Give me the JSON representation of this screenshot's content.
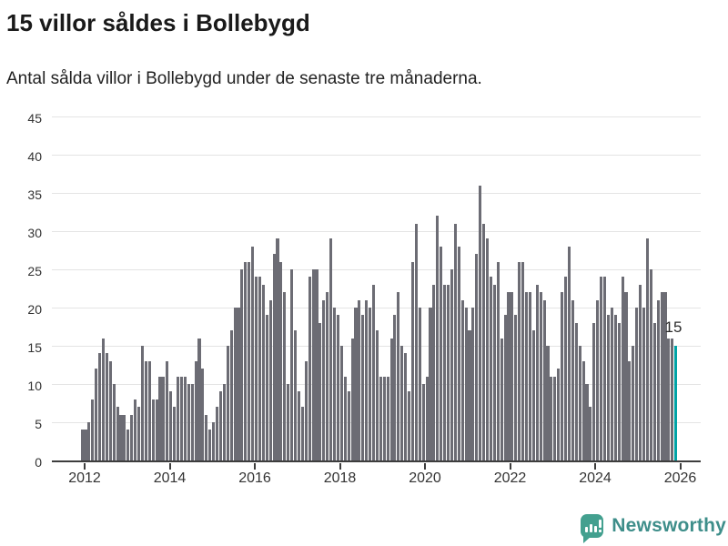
{
  "header": {
    "title": "15 villor såldes i Bollebygd",
    "subtitle": "Antal sålda villor i Bollebygd under de senaste tre månaderna."
  },
  "chart_data": {
    "type": "bar",
    "title": "15 villor såldes i Bollebygd",
    "frequency": "monthly",
    "start_month": "2011-12",
    "end_month": "2025-11",
    "ylim": [
      0,
      45
    ],
    "y_ticks": [
      0,
      5,
      10,
      15,
      20,
      25,
      30,
      35,
      40,
      45
    ],
    "x_tick_labels": [
      "2012",
      "2014",
      "2016",
      "2018",
      "2020",
      "2022",
      "2024",
      "2026"
    ],
    "grid": true,
    "legend": false,
    "bar_color": "#6c6c74",
    "values": [
      4,
      4,
      5,
      8,
      12,
      14,
      16,
      14,
      13,
      10,
      7,
      6,
      6,
      4,
      6,
      8,
      7,
      15,
      13,
      13,
      8,
      8,
      11,
      11,
      13,
      9,
      7,
      11,
      11,
      11,
      10,
      10,
      13,
      16,
      12,
      6,
      4,
      5,
      7,
      9,
      10,
      15,
      17,
      20,
      20,
      25,
      26,
      26,
      28,
      24,
      24,
      23,
      19,
      21,
      27,
      29,
      26,
      22,
      10,
      25,
      17,
      9,
      7,
      13,
      24,
      25,
      25,
      18,
      21,
      22,
      29,
      20,
      19,
      15,
      11,
      9,
      16,
      20,
      21,
      19,
      21,
      20,
      23,
      17,
      11,
      11,
      11,
      16,
      19,
      22,
      15,
      14,
      9,
      26,
      31,
      20,
      10,
      11,
      20,
      23,
      32,
      28,
      23,
      23,
      25,
      31,
      28,
      21,
      20,
      17,
      20,
      27,
      36,
      31,
      29,
      24,
      23,
      26,
      16,
      19,
      22,
      22,
      19,
      26,
      26,
      22,
      22,
      17,
      23,
      22,
      21,
      15,
      11,
      11,
      12,
      22,
      24,
      28,
      21,
      18,
      15,
      13,
      10,
      7,
      18,
      21,
      24,
      24,
      19,
      20,
      19,
      18,
      24,
      22,
      13,
      15,
      20,
      23,
      20,
      29,
      25,
      18,
      21,
      22,
      22,
      16,
      16,
      15
    ],
    "highlight": {
      "index": 167,
      "value": 15,
      "label": "15",
      "color": "#00a3a6"
    }
  },
  "footer": {
    "brand": "Newsworthy",
    "logo_icon": "newsworthy-speech-bubble-bar-chart-icon",
    "brand_color": "#3e8e8a",
    "logo_color": "#43a08f"
  }
}
